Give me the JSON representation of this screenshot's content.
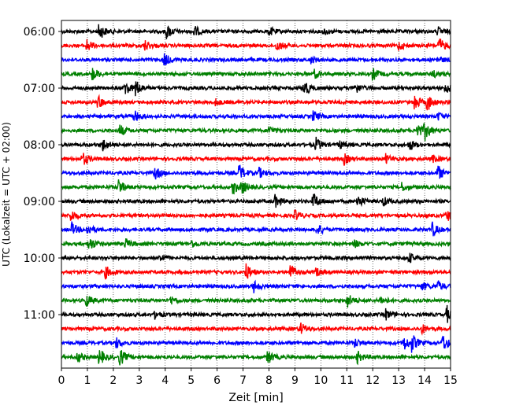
{
  "chart_data": {
    "type": "line",
    "title": "",
    "xlabel": "Zeit  [min]",
    "ylabel": "UTC (Lokalzeit = UTC + 02:00)",
    "xlim": [
      0,
      15
    ],
    "x_ticks": [
      0,
      1,
      2,
      3,
      4,
      5,
      6,
      7,
      8,
      9,
      10,
      11,
      12,
      13,
      14,
      15
    ],
    "x_tick_labels": [
      "0",
      "1",
      "2",
      "3",
      "4",
      "5",
      "6",
      "7",
      "8",
      "9",
      "10",
      "11",
      "12",
      "13",
      "14",
      "15"
    ],
    "y_ticks": [
      "06:00",
      "07:00",
      "08:00",
      "09:00",
      "10:00",
      "11:00"
    ],
    "grid": "vertical dotted",
    "trace_interval_minutes": 15,
    "colors_cycle": [
      "#000000",
      "#ff0000",
      "#0000ff",
      "#008000"
    ],
    "traces": [
      {
        "start": "06:00",
        "color": "#000000",
        "events": [
          {
            "t": 1.45,
            "amp": 1.0
          },
          {
            "t": 4.05,
            "amp": 0.8
          },
          {
            "t": 5.1,
            "amp": 0.7
          },
          {
            "t": 8.0,
            "amp": 0.5
          },
          {
            "t": 10.1,
            "amp": 0.4
          },
          {
            "t": 14.5,
            "amp": 0.5
          }
        ]
      },
      {
        "start": "06:15",
        "color": "#ff0000",
        "events": [
          {
            "t": 0.95,
            "amp": 0.8
          },
          {
            "t": 3.2,
            "amp": 0.6
          },
          {
            "t": 8.3,
            "amp": 0.6
          },
          {
            "t": 13.0,
            "amp": 0.5
          },
          {
            "t": 14.55,
            "amp": 0.9
          }
        ]
      },
      {
        "start": "06:30",
        "color": "#0000ff",
        "events": [
          {
            "t": 3.95,
            "amp": 0.8
          },
          {
            "t": 9.6,
            "amp": 0.4
          },
          {
            "t": 14.5,
            "amp": 0.4
          }
        ]
      },
      {
        "start": "06:45",
        "color": "#008000",
        "events": [
          {
            "t": 1.2,
            "amp": 0.8
          },
          {
            "t": 9.75,
            "amp": 0.5
          },
          {
            "t": 12.0,
            "amp": 0.7
          },
          {
            "t": 14.3,
            "amp": 0.4
          }
        ]
      },
      {
        "start": "07:00",
        "color": "#000000",
        "events": [
          {
            "t": 2.45,
            "amp": 0.9
          },
          {
            "t": 2.85,
            "amp": 0.9
          },
          {
            "t": 9.35,
            "amp": 1.0
          },
          {
            "t": 11.3,
            "amp": 0.7
          },
          {
            "t": 14.8,
            "amp": 0.6
          }
        ]
      },
      {
        "start": "07:15",
        "color": "#ff0000",
        "events": [
          {
            "t": 1.4,
            "amp": 0.8
          },
          {
            "t": 5.9,
            "amp": 0.4
          },
          {
            "t": 13.6,
            "amp": 1.0
          },
          {
            "t": 14.1,
            "amp": 1.0
          }
        ]
      },
      {
        "start": "07:30",
        "color": "#0000ff",
        "events": [
          {
            "t": 2.8,
            "amp": 0.7
          },
          {
            "t": 9.7,
            "amp": 0.6
          },
          {
            "t": 14.5,
            "amp": 0.5
          }
        ]
      },
      {
        "start": "07:45",
        "color": "#008000",
        "events": [
          {
            "t": 2.25,
            "amp": 0.7
          },
          {
            "t": 8.0,
            "amp": 0.5
          },
          {
            "t": 13.7,
            "amp": 1.0
          },
          {
            "t": 14.0,
            "amp": 1.0
          }
        ]
      },
      {
        "start": "08:00",
        "color": "#000000",
        "events": [
          {
            "t": 1.6,
            "amp": 0.7
          },
          {
            "t": 9.8,
            "amp": 0.8
          },
          {
            "t": 10.7,
            "amp": 0.5
          },
          {
            "t": 13.4,
            "amp": 0.7
          }
        ]
      },
      {
        "start": "08:15",
        "color": "#ff0000",
        "events": [
          {
            "t": 0.8,
            "amp": 0.8
          },
          {
            "t": 10.9,
            "amp": 0.6
          },
          {
            "t": 12.5,
            "amp": 0.5
          },
          {
            "t": 14.3,
            "amp": 0.4
          }
        ]
      },
      {
        "start": "08:30",
        "color": "#0000ff",
        "events": [
          {
            "t": 3.6,
            "amp": 0.7
          },
          {
            "t": 6.85,
            "amp": 1.0
          },
          {
            "t": 7.6,
            "amp": 0.6
          },
          {
            "t": 14.5,
            "amp": 0.9
          }
        ]
      },
      {
        "start": "08:45",
        "color": "#008000",
        "events": [
          {
            "t": 2.2,
            "amp": 0.9
          },
          {
            "t": 6.6,
            "amp": 0.8
          },
          {
            "t": 6.95,
            "amp": 0.7
          },
          {
            "t": 13.1,
            "amp": 0.5
          }
        ]
      },
      {
        "start": "09:00",
        "color": "#000000",
        "events": [
          {
            "t": 8.2,
            "amp": 0.8
          },
          {
            "t": 9.7,
            "amp": 1.0
          },
          {
            "t": 11.4,
            "amp": 0.8
          },
          {
            "t": 12.4,
            "amp": 0.5
          }
        ]
      },
      {
        "start": "09:15",
        "color": "#ff0000",
        "events": [
          {
            "t": 0.35,
            "amp": 0.7
          },
          {
            "t": 9.0,
            "amp": 0.6
          },
          {
            "t": 14.85,
            "amp": 0.7
          }
        ]
      },
      {
        "start": "09:30",
        "color": "#0000ff",
        "events": [
          {
            "t": 0.4,
            "amp": 0.7
          },
          {
            "t": 1.0,
            "amp": 0.6
          },
          {
            "t": 9.85,
            "amp": 0.7
          },
          {
            "t": 14.3,
            "amp": 0.8
          }
        ]
      },
      {
        "start": "09:45",
        "color": "#008000",
        "events": [
          {
            "t": 1.05,
            "amp": 0.9
          },
          {
            "t": 2.45,
            "amp": 0.6
          },
          {
            "t": 5.0,
            "amp": 0.4
          },
          {
            "t": 11.3,
            "amp": 0.4
          }
        ]
      },
      {
        "start": "10:00",
        "color": "#000000",
        "events": [
          {
            "t": 3.8,
            "amp": 0.5
          },
          {
            "t": 13.4,
            "amp": 0.6
          }
        ]
      },
      {
        "start": "10:15",
        "color": "#ff0000",
        "events": [
          {
            "t": 1.7,
            "amp": 0.7
          },
          {
            "t": 7.1,
            "amp": 1.0
          },
          {
            "t": 8.8,
            "amp": 1.0
          },
          {
            "t": 9.8,
            "amp": 0.5
          }
        ]
      },
      {
        "start": "10:30",
        "color": "#0000ff",
        "events": [
          {
            "t": 7.4,
            "amp": 0.7
          },
          {
            "t": 13.9,
            "amp": 0.5
          },
          {
            "t": 14.5,
            "amp": 0.6
          }
        ]
      },
      {
        "start": "10:45",
        "color": "#008000",
        "events": [
          {
            "t": 0.95,
            "amp": 0.7
          },
          {
            "t": 4.2,
            "amp": 0.5
          },
          {
            "t": 11.0,
            "amp": 0.9
          },
          {
            "t": 12.3,
            "amp": 0.4
          }
        ]
      },
      {
        "start": "11:00",
        "color": "#000000",
        "events": [
          {
            "t": 3.6,
            "amp": 0.4
          },
          {
            "t": 12.5,
            "amp": 0.6
          },
          {
            "t": 14.85,
            "amp": 1.0
          }
        ]
      },
      {
        "start": "11:15",
        "color": "#ff0000",
        "events": [
          {
            "t": 9.2,
            "amp": 0.7
          },
          {
            "t": 13.9,
            "amp": 0.5
          }
        ]
      },
      {
        "start": "11:30",
        "color": "#0000ff",
        "events": [
          {
            "t": 2.1,
            "amp": 0.6
          },
          {
            "t": 11.3,
            "amp": 0.5
          },
          {
            "t": 13.2,
            "amp": 0.9
          },
          {
            "t": 13.5,
            "amp": 0.9
          },
          {
            "t": 14.7,
            "amp": 1.0
          }
        ]
      },
      {
        "start": "11:45",
        "color": "#008000",
        "events": [
          {
            "t": 0.6,
            "amp": 0.6
          },
          {
            "t": 1.45,
            "amp": 1.0
          },
          {
            "t": 2.25,
            "amp": 1.0
          },
          {
            "t": 7.95,
            "amp": 0.8
          },
          {
            "t": 11.4,
            "amp": 0.7
          }
        ]
      }
    ]
  }
}
